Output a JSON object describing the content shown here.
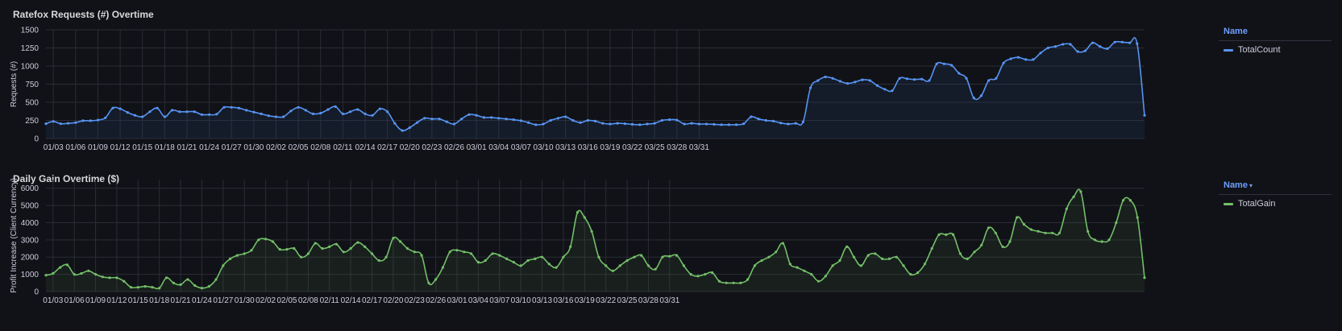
{
  "chart_data": [
    {
      "type": "area",
      "title": "Ratefox Requests (#) Overtime",
      "ylabel": "Requests (#)",
      "xlabel": "",
      "ylim": [
        0,
        1500
      ],
      "yticks": [
        0,
        250,
        500,
        750,
        1000,
        1250,
        1500
      ],
      "xticks": [
        "01/03",
        "01/06",
        "01/09",
        "01/12",
        "01/15",
        "01/18",
        "01/21",
        "01/24",
        "01/27",
        "01/30",
        "02/02",
        "02/05",
        "02/08",
        "02/11",
        "02/14",
        "02/17",
        "02/20",
        "02/23",
        "02/26",
        "03/01",
        "03/04",
        "03/07",
        "03/10",
        "03/13",
        "03/16",
        "03/19",
        "03/22",
        "03/25",
        "03/28",
        "03/31"
      ],
      "x_start": "01/02",
      "grid": true,
      "legend": {
        "header": "Name",
        "placement": "right"
      },
      "color": "#5794f2",
      "series": [
        {
          "name": "TotalCount",
          "values": [
            205,
            235,
            205,
            210,
            220,
            245,
            245,
            255,
            285,
            420,
            410,
            360,
            320,
            300,
            370,
            420,
            300,
            390,
            370,
            370,
            370,
            330,
            330,
            335,
            430,
            430,
            420,
            390,
            365,
            340,
            315,
            300,
            300,
            380,
            430,
            390,
            340,
            350,
            400,
            440,
            340,
            370,
            400,
            340,
            320,
            410,
            370,
            210,
            110,
            150,
            220,
            280,
            270,
            270,
            230,
            200,
            270,
            330,
            320,
            290,
            290,
            280,
            270,
            260,
            245,
            220,
            190,
            200,
            250,
            280,
            300,
            250,
            220,
            250,
            240,
            210,
            200,
            210,
            205,
            195,
            190,
            200,
            210,
            250,
            260,
            255,
            200,
            210,
            200,
            200,
            195,
            190,
            190,
            190,
            205,
            300,
            270,
            250,
            240,
            215,
            200,
            210,
            230,
            700,
            800,
            850,
            830,
            790,
            760,
            780,
            810,
            800,
            730,
            680,
            660,
            830,
            825,
            815,
            820,
            800,
            1030,
            1030,
            1010,
            900,
            830,
            560,
            590,
            800,
            830,
            1040,
            1100,
            1120,
            1090,
            1090,
            1180,
            1250,
            1270,
            1300,
            1300,
            1200,
            1210,
            1320,
            1270,
            1240,
            1330,
            1330,
            1320,
            1310,
            320
          ]
        }
      ]
    },
    {
      "type": "area",
      "title": "Daily Gain Overtime ($)",
      "ylabel": "Profit Increase (Client Currency)",
      "xlabel": "",
      "ylim": [
        0,
        6500
      ],
      "yticks": [
        0,
        1000,
        2000,
        3000,
        4000,
        5000,
        6000
      ],
      "xticks": [
        "01/03",
        "01/06",
        "01/09",
        "01/12",
        "01/15",
        "01/18",
        "01/21",
        "01/24",
        "01/27",
        "01/30",
        "02/02",
        "02/05",
        "02/08",
        "02/11",
        "02/14",
        "02/17",
        "02/20",
        "02/23",
        "02/26",
        "03/01",
        "03/04",
        "03/07",
        "03/10",
        "03/13",
        "03/16",
        "03/19",
        "03/22",
        "03/25",
        "03/28",
        "03/31"
      ],
      "x_start": "01/02",
      "grid": true,
      "legend": {
        "header": "Name",
        "placement": "right"
      },
      "color": "#73bf69",
      "series": [
        {
          "name": "TotalGain",
          "values": [
            950,
            1050,
            1400,
            1550,
            1000,
            1050,
            1200,
            1000,
            850,
            800,
            800,
            600,
            250,
            250,
            300,
            250,
            200,
            800,
            500,
            400,
            700,
            350,
            200,
            300,
            700,
            1500,
            1900,
            2100,
            2200,
            2400,
            3000,
            3050,
            2900,
            2450,
            2450,
            2500,
            2000,
            2200,
            2800,
            2500,
            2600,
            2750,
            2300,
            2500,
            2850,
            2600,
            2200,
            1800,
            2000,
            3100,
            2900,
            2500,
            2300,
            2100,
            500,
            700,
            1400,
            2300,
            2400,
            2300,
            2200,
            1700,
            1800,
            2200,
            2100,
            1900,
            1700,
            1500,
            1800,
            1900,
            2000,
            1600,
            1400,
            2000,
            2600,
            4600,
            4300,
            3500,
            2000,
            1500,
            1200,
            1500,
            1800,
            2000,
            2100,
            1500,
            1300,
            2000,
            2050,
            2100,
            1500,
            1000,
            900,
            1000,
            1100,
            600,
            500,
            500,
            500,
            700,
            1500,
            1800,
            2000,
            2300,
            2800,
            1600,
            1400,
            1200,
            1000,
            600,
            900,
            1500,
            1800,
            2600,
            2000,
            1500,
            2100,
            2200,
            1900,
            1900,
            2000,
            1500,
            1000,
            1100,
            1600,
            2500,
            3300,
            3300,
            3300,
            2200,
            1900,
            2300,
            2700,
            3700,
            3400,
            2600,
            2900,
            4300,
            3900,
            3600,
            3500,
            3400,
            3400,
            3400,
            4800,
            5500,
            5800,
            3500,
            3000,
            2900,
            3000,
            4000,
            5300,
            5300,
            4300,
            800
          ]
        }
      ]
    }
  ]
}
